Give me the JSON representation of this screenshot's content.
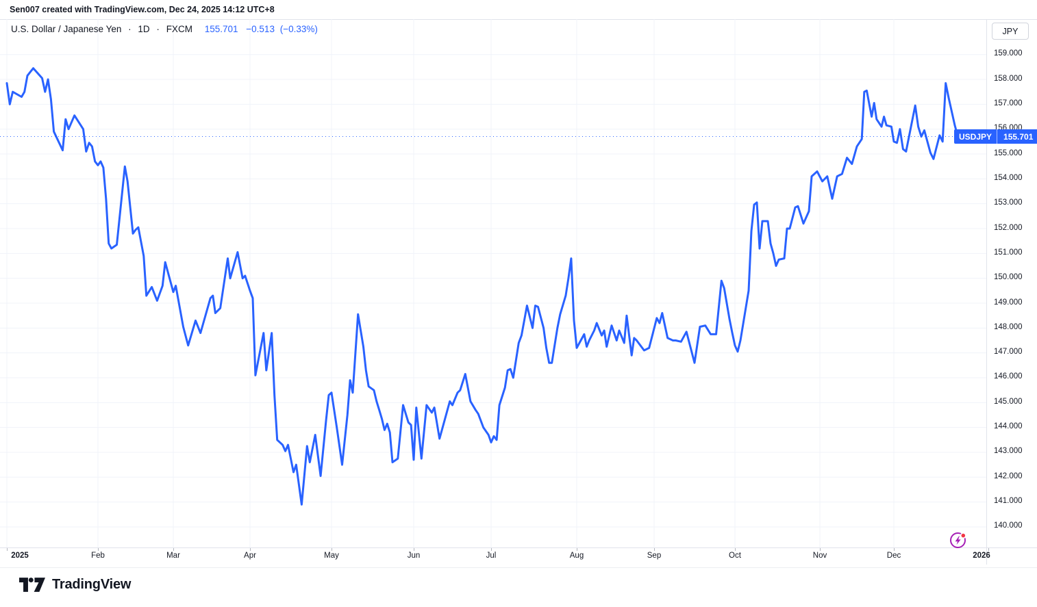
{
  "attribution": "Sen007 created with TradingView.com, Dec 24, 2025 14:12 UTC+8",
  "header": {
    "symbol_title": "U.S. Dollar / Japanese Yen",
    "separator": "·",
    "interval": "1D",
    "exchange": "FXCM",
    "last_price": "155.701",
    "change": "−0.513",
    "change_pct": "(−0.33%)"
  },
  "price_scale": {
    "currency_button_label": "JPY",
    "labels": [
      "159.000",
      "158.000",
      "157.000",
      "156.000",
      "155.000",
      "154.000",
      "153.000",
      "152.000",
      "151.000",
      "150.000",
      "149.000",
      "148.000",
      "147.000",
      "146.000",
      "145.000",
      "144.000",
      "143.000",
      "142.000",
      "141.000",
      "140.000"
    ],
    "last_price_badge": {
      "symbol": "USDJPY",
      "price": "155.701"
    }
  },
  "time_scale": {
    "labels": [
      {
        "label": "2025",
        "bold": true
      },
      {
        "label": "Feb"
      },
      {
        "label": "Mar"
      },
      {
        "label": "Apr"
      },
      {
        "label": "May"
      },
      {
        "label": "Jun"
      },
      {
        "label": "Jul"
      },
      {
        "label": "Aug"
      },
      {
        "label": "Sep"
      },
      {
        "label": "Oct"
      },
      {
        "label": "Nov"
      },
      {
        "label": "Dec"
      },
      {
        "label": "2026",
        "bold": true
      }
    ]
  },
  "logo": {
    "text": "TradingView"
  },
  "colors": {
    "line": "#2962ff",
    "badge": "#2962ff",
    "text": "#131722",
    "grid": "#f0f3fa",
    "border": "#e0e3eb",
    "flash_purple": "#a51fb5",
    "alert_red": "#f23645",
    "background": "#ffffff"
  },
  "chart_data": {
    "type": "line",
    "title": "U.S. Dollar / Japanese Yen · 1D · FXCM",
    "ylabel": "JPY",
    "xlabel": "",
    "grid": true,
    "legend_position": "none",
    "ylim": [
      139.2,
      160.4
    ],
    "y_tick_step": 1.0,
    "last_price": 155.701,
    "x_ticks": [
      "2025",
      "Feb",
      "Mar",
      "Apr",
      "May",
      "Jun",
      "Jul",
      "Aug",
      "Sep",
      "Oct",
      "Nov",
      "Dec",
      "2026"
    ],
    "series": [
      {
        "name": "USDJPY",
        "points": [
          [
            "2025-01-01",
            157.85
          ],
          [
            "2025-01-02",
            157.0
          ],
          [
            "2025-01-03",
            157.5
          ],
          [
            "2025-01-06",
            157.3
          ],
          [
            "2025-01-07",
            157.5
          ],
          [
            "2025-01-08",
            158.15
          ],
          [
            "2025-01-09",
            158.3
          ],
          [
            "2025-01-10",
            158.45
          ],
          [
            "2025-01-13",
            158.05
          ],
          [
            "2025-01-14",
            157.5
          ],
          [
            "2025-01-15",
            158.0
          ],
          [
            "2025-01-16",
            157.2
          ],
          [
            "2025-01-17",
            155.9
          ],
          [
            "2025-01-20",
            155.15
          ],
          [
            "2025-01-21",
            156.4
          ],
          [
            "2025-01-22",
            156.0
          ],
          [
            "2025-01-24",
            156.55
          ],
          [
            "2025-01-27",
            156.0
          ],
          [
            "2025-01-28",
            155.1
          ],
          [
            "2025-01-29",
            155.45
          ],
          [
            "2025-01-30",
            155.3
          ],
          [
            "2025-01-31",
            154.7
          ],
          [
            "2025-02-01",
            154.55
          ],
          [
            "2025-02-02",
            154.7
          ],
          [
            "2025-02-03",
            154.45
          ],
          [
            "2025-02-04",
            153.2
          ],
          [
            "2025-02-05",
            151.4
          ],
          [
            "2025-02-06",
            151.2
          ],
          [
            "2025-02-08",
            151.35
          ],
          [
            "2025-02-11",
            154.5
          ],
          [
            "2025-02-12",
            153.9
          ],
          [
            "2025-02-14",
            151.8
          ],
          [
            "2025-02-15",
            151.95
          ],
          [
            "2025-02-16",
            152.05
          ],
          [
            "2025-02-18",
            150.9
          ],
          [
            "2025-02-19",
            149.3
          ],
          [
            "2025-02-21",
            149.65
          ],
          [
            "2025-02-23",
            149.1
          ],
          [
            "2025-02-25",
            149.7
          ],
          [
            "2025-02-26",
            150.65
          ],
          [
            "2025-03-01",
            149.45
          ],
          [
            "2025-03-02",
            149.7
          ],
          [
            "2025-03-05",
            148.05
          ],
          [
            "2025-03-07",
            147.3
          ],
          [
            "2025-03-10",
            148.3
          ],
          [
            "2025-03-12",
            147.8
          ],
          [
            "2025-03-16",
            149.2
          ],
          [
            "2025-03-17",
            149.3
          ],
          [
            "2025-03-18",
            148.6
          ],
          [
            "2025-03-20",
            148.8
          ],
          [
            "2025-03-23",
            150.8
          ],
          [
            "2025-03-24",
            150.0
          ],
          [
            "2025-03-27",
            151.05
          ],
          [
            "2025-03-29",
            150.0
          ],
          [
            "2025-03-30",
            150.1
          ],
          [
            "2025-04-01",
            149.5
          ],
          [
            "2025-04-02",
            149.2
          ],
          [
            "2025-04-03",
            146.1
          ],
          [
            "2025-04-06",
            147.8
          ],
          [
            "2025-04-07",
            146.3
          ],
          [
            "2025-04-09",
            147.8
          ],
          [
            "2025-04-10",
            145.3
          ],
          [
            "2025-04-11",
            143.5
          ],
          [
            "2025-04-13",
            143.3
          ],
          [
            "2025-04-14",
            143.05
          ],
          [
            "2025-04-15",
            143.3
          ],
          [
            "2025-04-17",
            142.2
          ],
          [
            "2025-04-18",
            142.5
          ],
          [
            "2025-04-20",
            140.9
          ],
          [
            "2025-04-22",
            143.25
          ],
          [
            "2025-04-23",
            142.6
          ],
          [
            "2025-04-25",
            143.7
          ],
          [
            "2025-04-27",
            142.05
          ],
          [
            "2025-04-29",
            144.3
          ],
          [
            "2025-04-30",
            145.3
          ],
          [
            "2025-05-01",
            145.4
          ],
          [
            "2025-05-03",
            144.0
          ],
          [
            "2025-05-05",
            142.5
          ],
          [
            "2025-05-07",
            144.5
          ],
          [
            "2025-05-08",
            145.9
          ],
          [
            "2025-05-09",
            145.4
          ],
          [
            "2025-05-11",
            148.55
          ],
          [
            "2025-05-12",
            147.9
          ],
          [
            "2025-05-13",
            147.25
          ],
          [
            "2025-05-14",
            146.3
          ],
          [
            "2025-05-15",
            145.65
          ],
          [
            "2025-05-17",
            145.5
          ],
          [
            "2025-05-18",
            145.05
          ],
          [
            "2025-05-19",
            144.7
          ],
          [
            "2025-05-20",
            144.35
          ],
          [
            "2025-05-21",
            143.9
          ],
          [
            "2025-05-22",
            144.15
          ],
          [
            "2025-05-23",
            143.8
          ],
          [
            "2025-05-24",
            142.6
          ],
          [
            "2025-05-26",
            142.75
          ],
          [
            "2025-05-28",
            144.9
          ],
          [
            "2025-05-30",
            144.2
          ],
          [
            "2025-05-31",
            144.1
          ],
          [
            "2025-06-01",
            142.7
          ],
          [
            "2025-06-02",
            144.8
          ],
          [
            "2025-06-04",
            142.75
          ],
          [
            "2025-06-06",
            144.9
          ],
          [
            "2025-06-08",
            144.6
          ],
          [
            "2025-06-09",
            144.8
          ],
          [
            "2025-06-11",
            143.55
          ],
          [
            "2025-06-13",
            144.3
          ],
          [
            "2025-06-15",
            145.05
          ],
          [
            "2025-06-16",
            144.9
          ],
          [
            "2025-06-18",
            145.4
          ],
          [
            "2025-06-19",
            145.5
          ],
          [
            "2025-06-21",
            146.15
          ],
          [
            "2025-06-23",
            145.05
          ],
          [
            "2025-06-25",
            144.7
          ],
          [
            "2025-06-26",
            144.55
          ],
          [
            "2025-06-28",
            144.0
          ],
          [
            "2025-06-30",
            143.7
          ],
          [
            "2025-07-01",
            143.4
          ],
          [
            "2025-07-02",
            143.65
          ],
          [
            "2025-07-03",
            143.5
          ],
          [
            "2025-07-04",
            144.9
          ],
          [
            "2025-07-06",
            145.6
          ],
          [
            "2025-07-07",
            146.3
          ],
          [
            "2025-07-08",
            146.35
          ],
          [
            "2025-07-09",
            146.0
          ],
          [
            "2025-07-11",
            147.4
          ],
          [
            "2025-07-12",
            147.7
          ],
          [
            "2025-07-13",
            148.3
          ],
          [
            "2025-07-14",
            148.9
          ],
          [
            "2025-07-16",
            148.0
          ],
          [
            "2025-07-17",
            148.9
          ],
          [
            "2025-07-18",
            148.85
          ],
          [
            "2025-07-20",
            148.0
          ],
          [
            "2025-07-21",
            147.2
          ],
          [
            "2025-07-22",
            146.6
          ],
          [
            "2025-07-23",
            146.6
          ],
          [
            "2025-07-25",
            148.0
          ],
          [
            "2025-07-26",
            148.55
          ],
          [
            "2025-07-28",
            149.3
          ],
          [
            "2025-07-29",
            150.0
          ],
          [
            "2025-07-30",
            150.8
          ],
          [
            "2025-07-31",
            148.3
          ],
          [
            "2025-08-01",
            147.2
          ],
          [
            "2025-08-04",
            147.75
          ],
          [
            "2025-08-05",
            147.25
          ],
          [
            "2025-08-06",
            147.5
          ],
          [
            "2025-08-08",
            147.9
          ],
          [
            "2025-08-09",
            148.2
          ],
          [
            "2025-08-11",
            147.7
          ],
          [
            "2025-08-12",
            147.9
          ],
          [
            "2025-08-13",
            147.25
          ],
          [
            "2025-08-15",
            148.1
          ],
          [
            "2025-08-17",
            147.5
          ],
          [
            "2025-08-18",
            147.9
          ],
          [
            "2025-08-20",
            147.4
          ],
          [
            "2025-08-21",
            148.5
          ],
          [
            "2025-08-23",
            146.9
          ],
          [
            "2025-08-24",
            147.6
          ],
          [
            "2025-08-25",
            147.5
          ],
          [
            "2025-08-28",
            147.1
          ],
          [
            "2025-08-30",
            147.2
          ],
          [
            "2025-09-02",
            148.4
          ],
          [
            "2025-09-03",
            148.2
          ],
          [
            "2025-09-04",
            148.6
          ],
          [
            "2025-09-06",
            147.6
          ],
          [
            "2025-09-08",
            147.5
          ],
          [
            "2025-09-09",
            147.5
          ],
          [
            "2025-09-11",
            147.45
          ],
          [
            "2025-09-13",
            147.85
          ],
          [
            "2025-09-16",
            146.6
          ],
          [
            "2025-09-18",
            148.05
          ],
          [
            "2025-09-20",
            148.1
          ],
          [
            "2025-09-22",
            147.75
          ],
          [
            "2025-09-24",
            147.75
          ],
          [
            "2025-09-26",
            149.9
          ],
          [
            "2025-09-27",
            149.6
          ],
          [
            "2025-09-29",
            148.35
          ],
          [
            "2025-09-30",
            147.8
          ],
          [
            "2025-10-01",
            147.3
          ],
          [
            "2025-10-02",
            147.05
          ],
          [
            "2025-10-03",
            147.5
          ],
          [
            "2025-10-06",
            149.5
          ],
          [
            "2025-10-07",
            151.9
          ],
          [
            "2025-10-08",
            152.96
          ],
          [
            "2025-10-09",
            153.05
          ],
          [
            "2025-10-10",
            151.2
          ],
          [
            "2025-10-11",
            152.3
          ],
          [
            "2025-10-13",
            152.3
          ],
          [
            "2025-10-14",
            151.4
          ],
          [
            "2025-10-15",
            151.0
          ],
          [
            "2025-10-16",
            150.5
          ],
          [
            "2025-10-17",
            150.75
          ],
          [
            "2025-10-19",
            150.8
          ],
          [
            "2025-10-20",
            152.0
          ],
          [
            "2025-10-21",
            152.0
          ],
          [
            "2025-10-23",
            152.85
          ],
          [
            "2025-10-24",
            152.9
          ],
          [
            "2025-10-26",
            152.2
          ],
          [
            "2025-10-28",
            152.7
          ],
          [
            "2025-10-29",
            154.1
          ],
          [
            "2025-10-31",
            154.3
          ],
          [
            "2025-11-02",
            153.9
          ],
          [
            "2025-11-04",
            154.1
          ],
          [
            "2025-11-06",
            153.2
          ],
          [
            "2025-11-08",
            154.1
          ],
          [
            "2025-11-10",
            154.2
          ],
          [
            "2025-11-12",
            154.85
          ],
          [
            "2025-11-14",
            154.6
          ],
          [
            "2025-11-16",
            155.3
          ],
          [
            "2025-11-18",
            155.6
          ],
          [
            "2025-11-19",
            157.5
          ],
          [
            "2025-11-20",
            157.55
          ],
          [
            "2025-11-22",
            156.5
          ],
          [
            "2025-11-23",
            157.05
          ],
          [
            "2025-11-24",
            156.4
          ],
          [
            "2025-11-26",
            156.1
          ],
          [
            "2025-11-27",
            156.5
          ],
          [
            "2025-11-28",
            156.15
          ],
          [
            "2025-11-30",
            156.1
          ],
          [
            "2025-12-01",
            155.5
          ],
          [
            "2025-12-02",
            155.45
          ],
          [
            "2025-12-03",
            156.0
          ],
          [
            "2025-12-04",
            155.2
          ],
          [
            "2025-12-05",
            155.1
          ],
          [
            "2025-12-08",
            156.95
          ],
          [
            "2025-12-09",
            156.1
          ],
          [
            "2025-12-10",
            155.7
          ],
          [
            "2025-12-11",
            155.95
          ],
          [
            "2025-12-13",
            155.05
          ],
          [
            "2025-12-14",
            154.8
          ],
          [
            "2025-12-16",
            155.75
          ],
          [
            "2025-12-17",
            155.5
          ],
          [
            "2025-12-18",
            157.85
          ],
          [
            "2025-12-19",
            157.25
          ],
          [
            "2025-12-21",
            156.15
          ],
          [
            "2025-12-22",
            155.701
          ]
        ]
      }
    ]
  }
}
